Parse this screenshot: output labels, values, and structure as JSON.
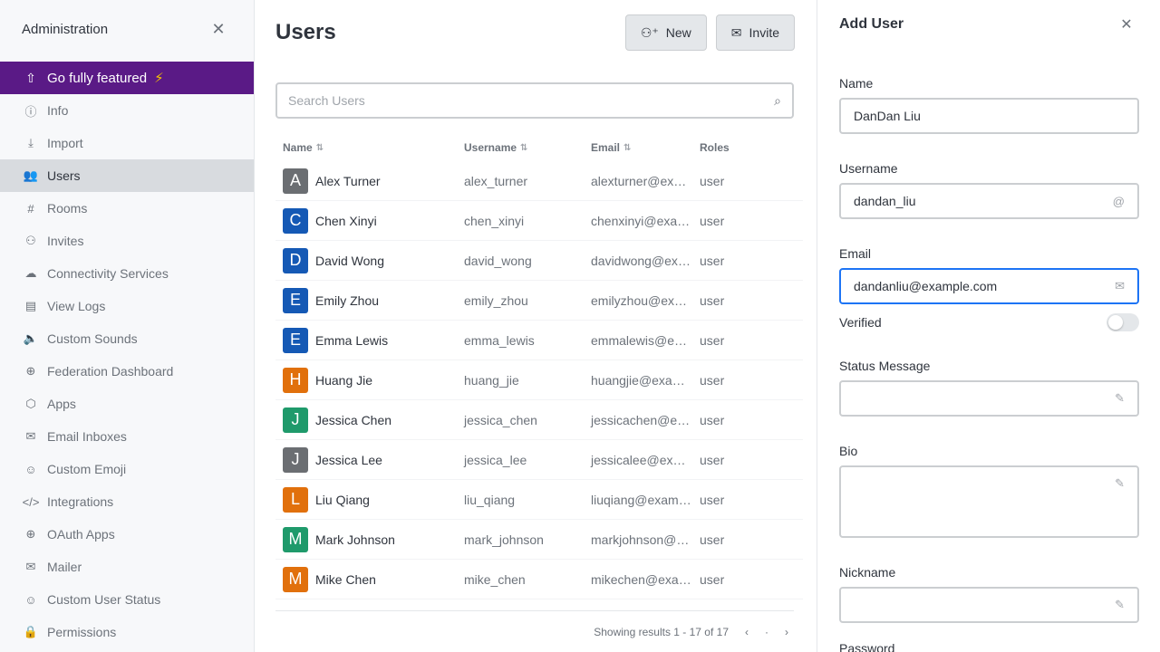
{
  "sidebar": {
    "title": "Administration",
    "upgrade_label": "Go fully featured",
    "items": [
      {
        "label": "Info",
        "icon": "ⓘ",
        "active": false
      },
      {
        "label": "Import",
        "icon": "⤓",
        "active": false
      },
      {
        "label": "Users",
        "icon": "👥",
        "active": true
      },
      {
        "label": "Rooms",
        "icon": "#",
        "active": false
      },
      {
        "label": "Invites",
        "icon": "⚇",
        "active": false
      },
      {
        "label": "Connectivity Services",
        "icon": "☁",
        "active": false
      },
      {
        "label": "View Logs",
        "icon": "▤",
        "active": false
      },
      {
        "label": "Custom Sounds",
        "icon": "🔈",
        "active": false
      },
      {
        "label": "Federation Dashboard",
        "icon": "⊕",
        "active": false
      },
      {
        "label": "Apps",
        "icon": "⬡",
        "active": false
      },
      {
        "label": "Email Inboxes",
        "icon": "✉",
        "active": false
      },
      {
        "label": "Custom Emoji",
        "icon": "☺",
        "active": false
      },
      {
        "label": "Integrations",
        "icon": "</>",
        "active": false
      },
      {
        "label": "OAuth Apps",
        "icon": "⊕",
        "active": false
      },
      {
        "label": "Mailer",
        "icon": "✉",
        "active": false
      },
      {
        "label": "Custom User Status",
        "icon": "☺",
        "active": false
      },
      {
        "label": "Permissions",
        "icon": "🔒",
        "active": false
      }
    ]
  },
  "main": {
    "title": "Users",
    "new_label": "New",
    "invite_label": "Invite",
    "search_placeholder": "Search Users",
    "columns": {
      "name": "Name",
      "username": "Username",
      "email": "Email",
      "roles": "Roles"
    },
    "users": [
      {
        "initial": "A",
        "name": "Alex Turner",
        "username": "alex_turner",
        "email": "alexturner@example.com",
        "roles": "user",
        "color": "#6b6e72"
      },
      {
        "initial": "C",
        "name": "Chen Xinyi",
        "username": "chen_xinyi",
        "email": "chenxinyi@example.com",
        "roles": "user",
        "color": "#1559b5"
      },
      {
        "initial": "D",
        "name": "David Wong",
        "username": "david_wong",
        "email": "davidwong@example.com",
        "roles": "user",
        "color": "#1559b5"
      },
      {
        "initial": "E",
        "name": "Emily Zhou",
        "username": "emily_zhou",
        "email": "emilyzhou@example.com",
        "roles": "user",
        "color": "#1559b5"
      },
      {
        "initial": "E",
        "name": "Emma Lewis",
        "username": "emma_lewis",
        "email": "emmalewis@example.com",
        "roles": "user",
        "color": "#1559b5"
      },
      {
        "initial": "H",
        "name": "Huang Jie",
        "username": "huang_jie",
        "email": "huangjie@example.com",
        "roles": "user",
        "color": "#e1700c"
      },
      {
        "initial": "J",
        "name": "Jessica Chen",
        "username": "jessica_chen",
        "email": "jessicachen@example.com",
        "roles": "user",
        "color": "#1f9a6b"
      },
      {
        "initial": "J",
        "name": "Jessica Lee",
        "username": "jessica_lee",
        "email": "jessicalee@example.com",
        "roles": "user",
        "color": "#6b6e72"
      },
      {
        "initial": "L",
        "name": "Liu Qiang",
        "username": "liu_qiang",
        "email": "liuqiang@example.com",
        "roles": "user",
        "color": "#e1700c"
      },
      {
        "initial": "M",
        "name": "Mark Johnson",
        "username": "mark_johnson",
        "email": "markjohnson@example.com",
        "roles": "user",
        "color": "#1f9a6b"
      },
      {
        "initial": "M",
        "name": "Mike Chen",
        "username": "mike_chen",
        "email": "mikechen@example.com",
        "roles": "user",
        "color": "#e1700c"
      }
    ],
    "results_text": "Showing results 1 - 17 of 17"
  },
  "panel": {
    "title": "Add User",
    "name_label": "Name",
    "name_value": "DanDan Liu",
    "username_label": "Username",
    "username_value": "dandan_liu",
    "email_label": "Email",
    "email_value": "dandanliu@example.com",
    "verified_label": "Verified",
    "status_label": "Status Message",
    "bio_label": "Bio",
    "nickname_label": "Nickname",
    "password_label": "Password"
  }
}
